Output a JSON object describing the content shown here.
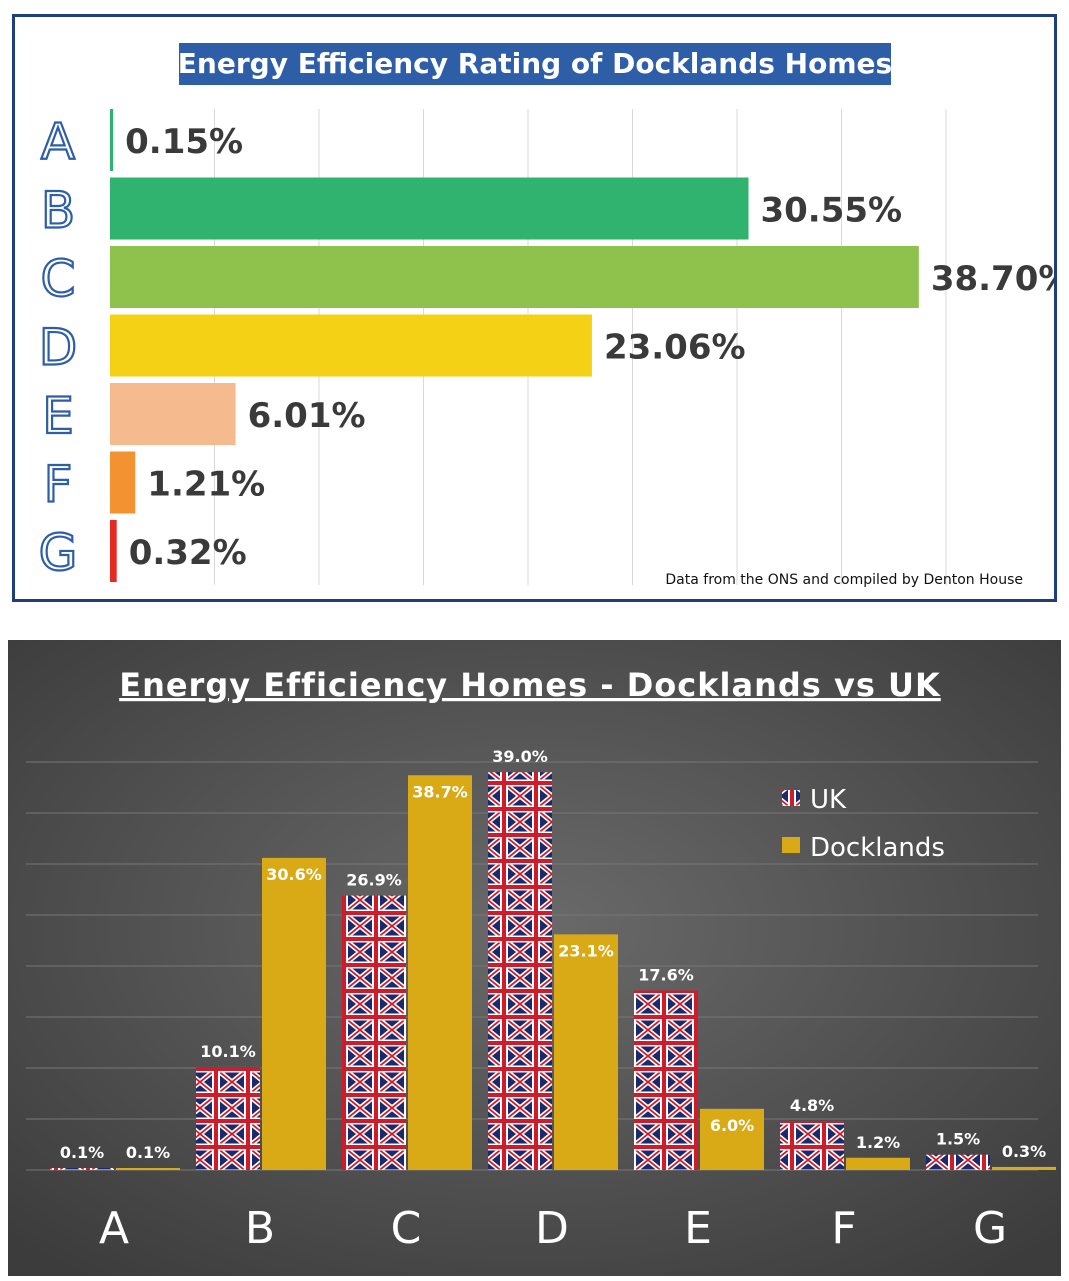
{
  "chart_data": [
    {
      "type": "bar",
      "orientation": "horizontal",
      "title": "Energy Efficiency Rating of Docklands Homes",
      "categories": [
        "A",
        "B",
        "C",
        "D",
        "E",
        "F",
        "G"
      ],
      "values": [
        0.15,
        30.55,
        38.7,
        23.06,
        6.01,
        1.21,
        0.32
      ],
      "value_labels": [
        "0.15%",
        "30.55%",
        "38.70%",
        "23.06%",
        "6.01%",
        "1.21%",
        "0.32%"
      ],
      "colors": [
        "#2fb36e",
        "#2fb36e",
        "#8fc24d",
        "#f5d116",
        "#f5bb8e",
        "#f29230",
        "#e52a22"
      ],
      "xlim": [
        0,
        40
      ],
      "grid": true,
      "note": "Data from the ONS and compiled by Denton House"
    },
    {
      "type": "bar",
      "title": "Energy Efficiency Homes - Docklands vs UK",
      "categories": [
        "A",
        "B",
        "C",
        "D",
        "E",
        "F",
        "G"
      ],
      "series": [
        {
          "name": "UK",
          "values": [
            0.1,
            10.1,
            26.9,
            39.0,
            17.6,
            4.8,
            1.5
          ],
          "value_labels": [
            "0.1%",
            "10.1%",
            "26.9%",
            "39.0%",
            "17.6%",
            "4.8%",
            "1.5%"
          ],
          "color": "#1a2a6c"
        },
        {
          "name": "Docklands",
          "values": [
            0.1,
            30.6,
            38.7,
            23.1,
            6.0,
            1.2,
            0.3
          ],
          "value_labels": [
            "0.1%",
            "30.6%",
            "38.7%",
            "23.1%",
            "6.0%",
            "1.2%",
            "0.3%"
          ],
          "color": "#d9aa16"
        }
      ],
      "ylim": [
        0,
        40
      ],
      "grid": true,
      "legend": "top-right",
      "background": "#555555"
    }
  ]
}
